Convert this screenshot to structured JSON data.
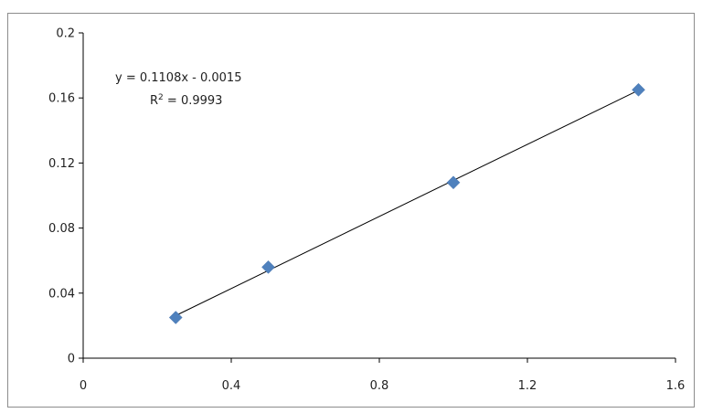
{
  "chart_data": {
    "type": "scatter",
    "title": "",
    "xlabel": "",
    "ylabel": "",
    "xlim": [
      0,
      1.6
    ],
    "ylim": [
      0,
      0.2
    ],
    "x_ticks": [
      "0",
      "0.4",
      "0.8",
      "1.2",
      "1.6"
    ],
    "y_ticks": [
      "0",
      "0.04",
      "0.08",
      "0.12",
      "0.16",
      "0.2"
    ],
    "grid": false,
    "legend": "none",
    "series": [
      {
        "marker": "diamond",
        "color": "#4f81bd",
        "points": [
          {
            "x": 0.25,
            "y": 0.025
          },
          {
            "x": 0.5,
            "y": 0.056
          },
          {
            "x": 1.0,
            "y": 0.108
          },
          {
            "x": 1.5,
            "y": 0.165
          }
        ]
      }
    ],
    "trendline": {
      "type": "linear",
      "slope": 0.1108,
      "intercept": -0.0015,
      "x_range": [
        0.25,
        1.5
      ],
      "color": "#000000"
    },
    "annotations": {
      "equation": "y = 0.1108x - 0.0015",
      "r2_prefix": "R",
      "r2_superscript": "2",
      "r2_value": " = 0.9993"
    }
  }
}
